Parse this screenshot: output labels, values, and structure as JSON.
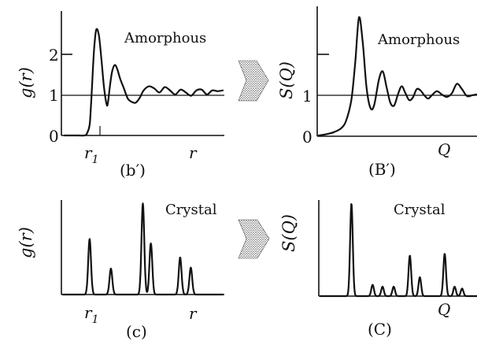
{
  "panels": {
    "b_prime": {
      "material": "Amorphous",
      "ylabel": "g(r)",
      "xlabel": "r",
      "marker": "r",
      "marker_sub": "1",
      "caption": "(b′)",
      "yticks": [
        "0",
        "1",
        "2"
      ]
    },
    "B_prime": {
      "material": "Amorphous",
      "ylabel": "S(Q)",
      "xlabel": "Q",
      "caption": "(B′)",
      "yticks": [
        "0",
        "1"
      ]
    },
    "c": {
      "material": "Crystal",
      "ylabel": "g(r)",
      "xlabel": "r",
      "marker": "r",
      "marker_sub": "1",
      "caption": "(c)"
    },
    "C": {
      "material": "Crystal",
      "ylabel": "S(Q)",
      "xlabel": "Q",
      "caption": "(C)"
    }
  },
  "chart_data": [
    {
      "type": "line",
      "panel": "b_prime",
      "title": "Amorphous",
      "ylabel": "g(r)",
      "xlabel": "r",
      "ylim": [
        0,
        2.7
      ],
      "yticks": [
        0,
        1,
        2
      ],
      "x": [
        0.0,
        0.5,
        0.75,
        0.85,
        0.95,
        1.0,
        1.05,
        1.12,
        1.2,
        1.3,
        1.4,
        1.5,
        1.6,
        1.65,
        1.72,
        1.8,
        1.9,
        2.0,
        2.1,
        2.25,
        2.4,
        2.55,
        2.7,
        2.85,
        3.0,
        3.2,
        3.4,
        3.6,
        3.8,
        4.0,
        4.2,
        4.4,
        4.6,
        4.8,
        5.0,
        5.2,
        5.4,
        5.6,
        5.8,
        6.0
      ],
      "y": [
        0.0,
        0.0,
        0.0,
        0.05,
        0.25,
        0.7,
        1.3,
        2.1,
        2.58,
        2.45,
        1.85,
        1.15,
        0.75,
        0.82,
        1.2,
        1.55,
        1.72,
        1.62,
        1.4,
        1.15,
        0.9,
        0.82,
        0.8,
        0.92,
        1.1,
        1.2,
        1.15,
        1.05,
        1.18,
        1.1,
        1.0,
        1.12,
        1.05,
        0.97,
        1.1,
        1.12,
        1.0,
        1.1,
        1.08,
        1.1
      ]
    },
    {
      "type": "line",
      "panel": "B_prime",
      "title": "Amorphous",
      "ylabel": "S(Q)",
      "xlabel": "Q",
      "ylim": [
        0,
        3.1
      ],
      "yticks": [
        0,
        1
      ],
      "x": [
        0.0,
        0.3,
        0.6,
        0.9,
        1.1,
        1.3,
        1.45,
        1.6,
        1.75,
        1.9,
        2.05,
        2.2,
        2.4,
        2.55,
        2.7,
        2.85,
        3.0,
        3.15,
        3.3,
        3.45,
        3.6,
        3.75,
        3.9,
        4.05,
        4.2,
        4.35,
        4.5,
        4.7,
        4.9,
        5.1,
        5.3,
        5.5,
        5.7,
        5.9,
        6.1,
        6.3
      ],
      "y": [
        0.02,
        0.05,
        0.1,
        0.2,
        0.4,
        0.9,
        1.8,
        2.9,
        2.3,
        1.2,
        0.7,
        0.75,
        1.4,
        1.58,
        1.2,
        0.82,
        0.75,
        1.02,
        1.22,
        1.05,
        0.88,
        0.95,
        1.15,
        1.12,
        1.0,
        0.92,
        1.0,
        1.1,
        1.02,
        0.96,
        1.05,
        1.28,
        1.15,
        0.98,
        1.0,
        1.02
      ]
    },
    {
      "type": "line",
      "panel": "c",
      "title": "Crystal",
      "ylabel": "g(r)",
      "xlabel": "r",
      "baseline": 0,
      "peaks": [
        {
          "x": 1.0,
          "height": 0.6
        },
        {
          "x": 1.8,
          "height": 0.28
        },
        {
          "x": 3.0,
          "height": 0.98
        },
        {
          "x": 3.3,
          "height": 0.55
        },
        {
          "x": 4.4,
          "height": 0.4
        },
        {
          "x": 4.8,
          "height": 0.29
        }
      ]
    },
    {
      "type": "line",
      "panel": "C",
      "title": "Crystal",
      "ylabel": "S(Q)",
      "xlabel": "Q",
      "baseline": 0,
      "peaks": [
        {
          "x": 1.25,
          "height": 0.98
        },
        {
          "x": 2.1,
          "height": 0.12
        },
        {
          "x": 2.5,
          "height": 0.1
        },
        {
          "x": 2.95,
          "height": 0.1
        },
        {
          "x": 3.6,
          "height": 0.43
        },
        {
          "x": 4.0,
          "height": 0.2
        },
        {
          "x": 5.0,
          "height": 0.45
        },
        {
          "x": 5.4,
          "height": 0.1
        },
        {
          "x": 5.7,
          "height": 0.08
        }
      ]
    }
  ]
}
